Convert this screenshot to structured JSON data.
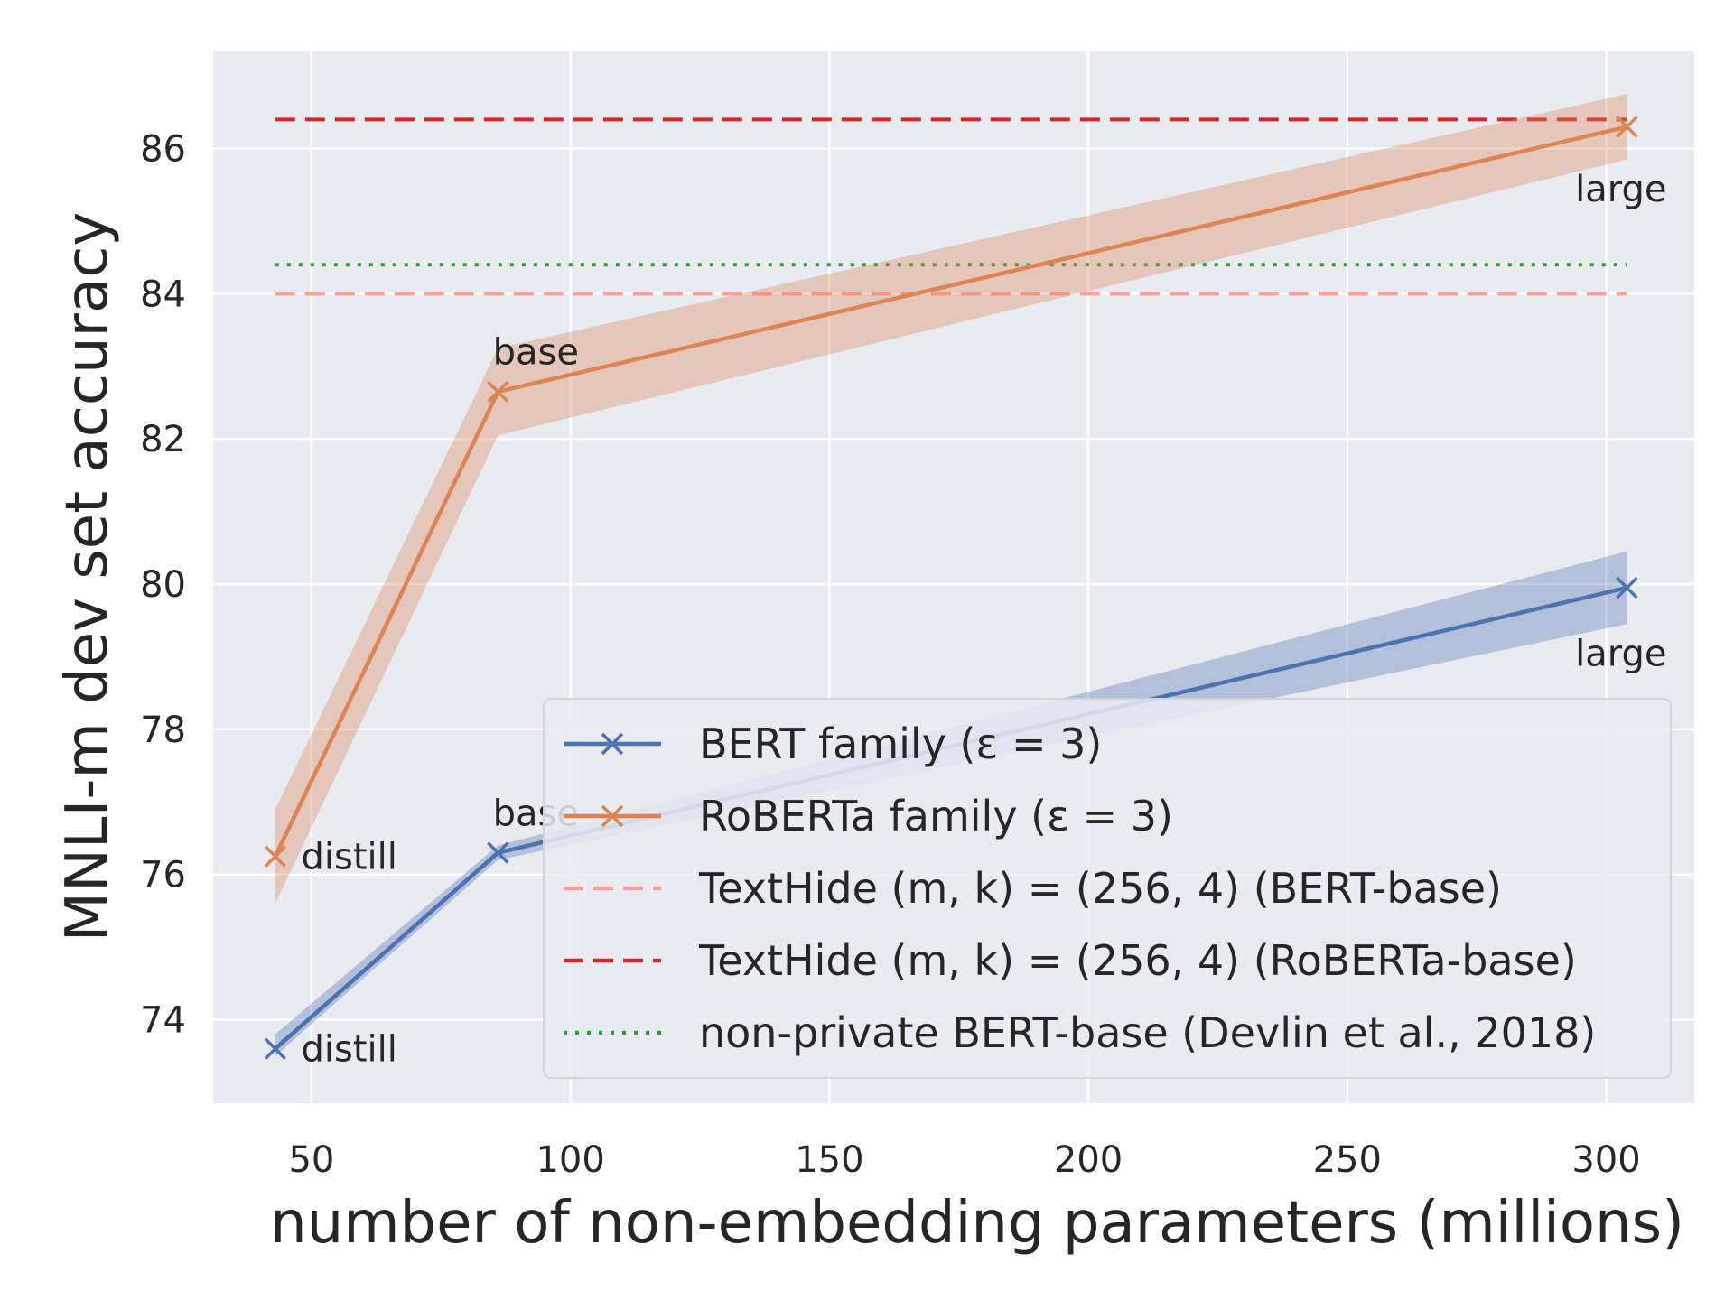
{
  "chart_data": {
    "type": "line",
    "title": "",
    "xlabel": "number of non-embedding parameters (millions)",
    "ylabel": "MNLI-m dev set accuracy",
    "xlim": [
      31,
      317
    ],
    "ylim": [
      72.85,
      87.35
    ],
    "x_ticks": [
      50,
      100,
      150,
      200,
      250,
      300
    ],
    "y_ticks": [
      74,
      76,
      78,
      80,
      82,
      84,
      86
    ],
    "grid": true,
    "background": "#EAEAF2",
    "legend_position": "lower-right",
    "series": [
      {
        "name": "BERT family (ε = 3)",
        "color": "#4C72B0",
        "marker": "x",
        "x": [
          43,
          86,
          304
        ],
        "y": [
          73.6,
          76.3,
          79.95
        ],
        "band_lower": [
          73.5,
          76.2,
          79.45
        ],
        "band_upper": [
          73.8,
          76.4,
          80.45
        ]
      },
      {
        "name": "RoBERTa family (ε = 3)",
        "color": "#DD8452",
        "marker": "x",
        "x": [
          43,
          86,
          304
        ],
        "y": [
          76.25,
          82.65,
          86.3
        ],
        "band_lower": [
          75.6,
          82.05,
          85.85
        ],
        "band_upper": [
          76.9,
          83.25,
          86.75
        ]
      }
    ],
    "reference_lines": [
      {
        "name": "TextHide (m, k) = (256, 4) (BERT-base)",
        "y": 84.0,
        "x_range": [
          43,
          304
        ],
        "color": "#FF9F9B",
        "style": "dashed"
      },
      {
        "name": "TextHide (m, k) = (256, 4) (RoBERTa-base)",
        "y": 86.4,
        "x_range": [
          43,
          304
        ],
        "color": "#D62728",
        "style": "dashed"
      },
      {
        "name": "non-private BERT-base (Devlin et al., 2018)",
        "y": 84.4,
        "x_range": [
          43,
          304
        ],
        "color": "#2CA02C",
        "style": "dotted"
      }
    ],
    "annotations": [
      {
        "text": "distill",
        "x": 48,
        "y": 76.25
      },
      {
        "text": "base",
        "x": 85,
        "y": 83.2
      },
      {
        "text": "large",
        "x": 294,
        "y": 85.45
      },
      {
        "text": "distill",
        "x": 48,
        "y": 73.6
      },
      {
        "text": "base",
        "x": 85,
        "y": 76.85
      },
      {
        "text": "large",
        "x": 294,
        "y": 79.05
      }
    ]
  }
}
